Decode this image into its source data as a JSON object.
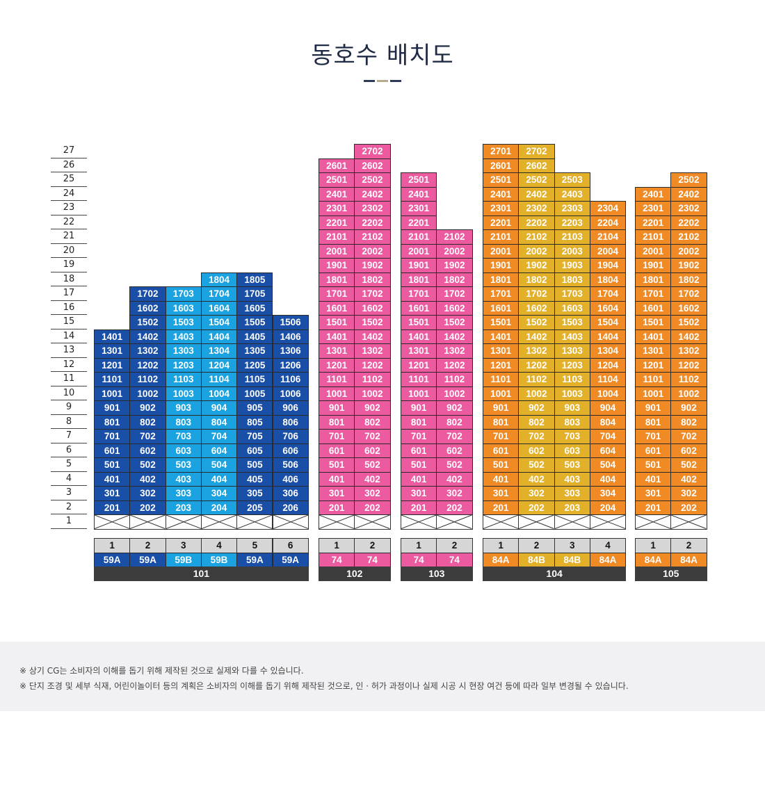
{
  "title": "동호수 배치도",
  "deco_colors": [
    "#2c3a57",
    "#b8aa8e",
    "#2c3a57"
  ],
  "colors": {
    "59A": "#1a4fa8",
    "59B": "#1aa3e0",
    "74": "#ec5aa0",
    "84A": "#f08a24",
    "84B": "#e3b02a",
    "empty_border": "#333333",
    "line_bg": "#d6d6d6",
    "bldg_bg": "#3c3c3c"
  },
  "floors": [
    "1",
    "2",
    "3",
    "4",
    "5",
    "6",
    "7",
    "8",
    "9",
    "10",
    "11",
    "12",
    "13",
    "14",
    "15",
    "16",
    "17",
    "18",
    "19",
    "20",
    "21",
    "22",
    "23",
    "24",
    "25",
    "26",
    "27"
  ],
  "buildings": [
    {
      "name": "101",
      "lines": [
        {
          "line": "1",
          "type": "59A",
          "units": [
            "201",
            "301",
            "401",
            "501",
            "601",
            "701",
            "801",
            "901",
            "1001",
            "1101",
            "1201",
            "1301",
            "1401"
          ]
        },
        {
          "line": "2",
          "type": "59A",
          "units": [
            "202",
            "302",
            "402",
            "502",
            "602",
            "702",
            "802",
            "902",
            "1002",
            "1102",
            "1202",
            "1302",
            "1402",
            "1502",
            "1602",
            "1702"
          ]
        },
        {
          "line": "3",
          "type": "59B",
          "units": [
            "203",
            "303",
            "403",
            "503",
            "603",
            "703",
            "803",
            "903",
            "1003",
            "1103",
            "1203",
            "1303",
            "1403",
            "1503",
            "1603",
            "1703"
          ]
        },
        {
          "line": "4",
          "type": "59B",
          "units": [
            "204",
            "304",
            "404",
            "504",
            "604",
            "704",
            "804",
            "904",
            "1004",
            "1104",
            "1204",
            "1304",
            "1404",
            "1504",
            "1604",
            "1704",
            "1804"
          ]
        },
        {
          "line": "5",
          "type": "59A",
          "units": [
            "205",
            "305",
            "405",
            "505",
            "605",
            "705",
            "805",
            "905",
            "1005",
            "1105",
            "1205",
            "1305",
            "1405",
            "1505",
            "1605",
            "1705",
            "1805"
          ]
        },
        {
          "line": "6",
          "type": "59A",
          "units": [
            "206",
            "306",
            "406",
            "506",
            "606",
            "706",
            "806",
            "906",
            "1006",
            "1106",
            "1206",
            "1306",
            "1406",
            "1506"
          ]
        }
      ]
    },
    {
      "name": "102",
      "lines": [
        {
          "line": "1",
          "type": "74",
          "units": [
            "201",
            "301",
            "401",
            "501",
            "601",
            "701",
            "801",
            "901",
            "1001",
            "1101",
            "1201",
            "1301",
            "1401",
            "1501",
            "1601",
            "1701",
            "1801",
            "1901",
            "2001",
            "2101",
            "2201",
            "2301",
            "2401",
            "2501",
            "2601"
          ]
        },
        {
          "line": "2",
          "type": "74",
          "units": [
            "202",
            "302",
            "402",
            "502",
            "602",
            "702",
            "802",
            "902",
            "1002",
            "1102",
            "1202",
            "1302",
            "1402",
            "1502",
            "1602",
            "1702",
            "1802",
            "1902",
            "2002",
            "2102",
            "2202",
            "2302",
            "2402",
            "2502",
            "2602",
            "2702"
          ]
        }
      ]
    },
    {
      "name": "103",
      "lines": [
        {
          "line": "1",
          "type": "74",
          "units": [
            "201",
            "301",
            "401",
            "501",
            "601",
            "701",
            "801",
            "901",
            "1001",
            "1101",
            "1201",
            "1301",
            "1401",
            "1501",
            "1601",
            "1701",
            "1801",
            "1901",
            "2001",
            "2101",
            "2201",
            "2301",
            "2401",
            "2501"
          ]
        },
        {
          "line": "2",
          "type": "74",
          "units": [
            "202",
            "302",
            "402",
            "502",
            "602",
            "702",
            "802",
            "902",
            "1002",
            "1102",
            "1202",
            "1302",
            "1402",
            "1502",
            "1602",
            "1702",
            "1802",
            "1902",
            "2002",
            "2102"
          ]
        }
      ]
    },
    {
      "name": "104",
      "lines": [
        {
          "line": "1",
          "type": "84A",
          "units": [
            "201",
            "301",
            "401",
            "501",
            "601",
            "701",
            "801",
            "901",
            "1001",
            "1101",
            "1201",
            "1301",
            "1401",
            "1501",
            "1601",
            "1701",
            "1801",
            "1901",
            "2001",
            "2101",
            "2201",
            "2301",
            "2401",
            "2501",
            "2601",
            "2701"
          ]
        },
        {
          "line": "2",
          "type": "84B",
          "units": [
            "202",
            "302",
            "402",
            "502",
            "602",
            "702",
            "802",
            "902",
            "1002",
            "1102",
            "1202",
            "1302",
            "1402",
            "1502",
            "1602",
            "1702",
            "1802",
            "1902",
            "2002",
            "2102",
            "2202",
            "2302",
            "2402",
            "2502",
            "2602",
            "2702"
          ]
        },
        {
          "line": "3",
          "type": "84B",
          "units": [
            "203",
            "303",
            "403",
            "503",
            "603",
            "703",
            "803",
            "903",
            "1003",
            "1103",
            "1203",
            "1303",
            "1403",
            "1503",
            "1603",
            "1703",
            "1803",
            "1903",
            "2003",
            "2103",
            "2203",
            "2303",
            "2403",
            "2503"
          ]
        },
        {
          "line": "4",
          "type": "84A",
          "units": [
            "204",
            "304",
            "404",
            "504",
            "604",
            "704",
            "804",
            "904",
            "1004",
            "1104",
            "1204",
            "1304",
            "1404",
            "1504",
            "1604",
            "1704",
            "1804",
            "1904",
            "2004",
            "2104",
            "2204",
            "2304"
          ]
        }
      ]
    },
    {
      "name": "105",
      "lines": [
        {
          "line": "1",
          "type": "84A",
          "units": [
            "201",
            "301",
            "401",
            "501",
            "601",
            "701",
            "801",
            "901",
            "1001",
            "1101",
            "1201",
            "1301",
            "1401",
            "1501",
            "1601",
            "1701",
            "1801",
            "1901",
            "2001",
            "2101",
            "2201",
            "2301",
            "2401"
          ]
        },
        {
          "line": "2",
          "type": "84A",
          "units": [
            "202",
            "302",
            "402",
            "502",
            "602",
            "702",
            "802",
            "902",
            "1002",
            "1102",
            "1202",
            "1302",
            "1402",
            "1502",
            "1602",
            "1702",
            "1802",
            "1902",
            "2002",
            "2102",
            "2202",
            "2302",
            "2402",
            "2502"
          ]
        }
      ]
    }
  ],
  "notes": [
    "※  상기 CG는 소비자의 이해를 돕기 위해 제작된 것으로 실제와 다를 수 있습니다.",
    "※  단지 조경 및 세부 식재, 어린이놀이터 등의 계획은 소비자의 이해를 돕기 위해 제작된 것으로, 인 · 허가 과정이나 실제 시공 시 현장 여건 등에 따라 일부 변경될 수 있습니다."
  ]
}
